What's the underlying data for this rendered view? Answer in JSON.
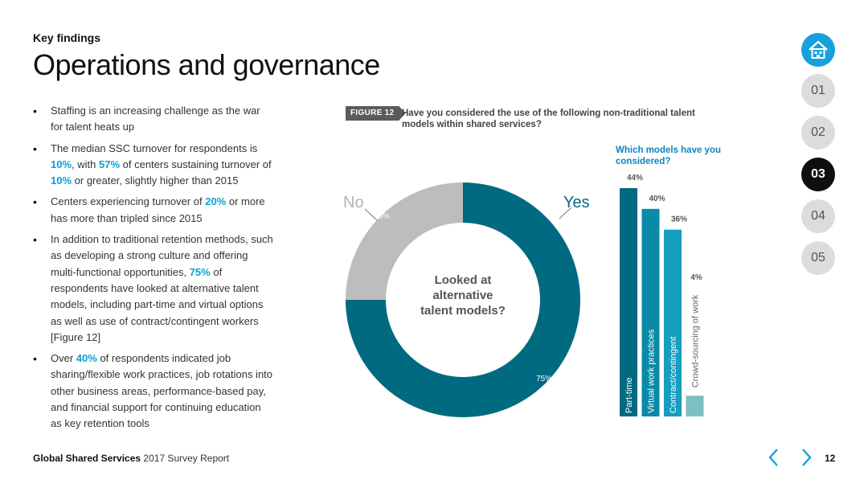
{
  "header": {
    "kicker": "Key findings",
    "title": "Operations and governance"
  },
  "bullets": [
    {
      "parts": [
        {
          "t": "Staffing is an increasing challenge as the war for talent heats up"
        }
      ]
    },
    {
      "parts": [
        {
          "t": "The median SSC turnover for respondents is "
        },
        {
          "t": "10%",
          "hl": true
        },
        {
          "t": ", with "
        },
        {
          "t": "57%",
          "hl": true
        },
        {
          "t": " of centers sustaining turnover of "
        },
        {
          "t": "10%",
          "hl": true
        },
        {
          "t": " or greater, slightly higher than 2015"
        }
      ]
    },
    {
      "parts": [
        {
          "t": "Centers experiencing turnover of "
        },
        {
          "t": "20%",
          "hl": true
        },
        {
          "t": " or more has more than tripled since 2015"
        }
      ]
    },
    {
      "parts": [
        {
          "t": "In addition to traditional retention methods, such as developing a strong culture and offering multi-functional opportunities, "
        },
        {
          "t": "75%",
          "hl": true
        },
        {
          "t": " of respondents have looked at alternative talent models, including part-time and virtual options as well as use of contract/contingent workers [Figure 12]"
        }
      ]
    },
    {
      "parts": [
        {
          "t": "Over "
        },
        {
          "t": "40%",
          "hl": true
        },
        {
          "t": " of respondents indicated job sharing/flexible work practices, job rotations into other business areas, performance-based pay, and financial support for continuing education as key retention tools"
        }
      ]
    }
  ],
  "figure": {
    "tag": "FIGURE 12",
    "question": "Have you considered the use of the following non-traditional talent models within shared services?",
    "bar_heading": "Which models have you considered?"
  },
  "chart_data": [
    {
      "type": "pie",
      "center_label": "Looked at alternative talent models?",
      "slices": [
        {
          "label": "Yes",
          "value": 75,
          "value_label": "75%",
          "color": "#006a80"
        },
        {
          "label": "No",
          "value": 25,
          "value_label": "25%",
          "color": "#bdbdbd"
        }
      ]
    },
    {
      "type": "bar",
      "orientation": "vertical",
      "categories": [
        "Part-time",
        "Virtual work practices",
        "Contract/contingent",
        "Crowd-sourcing of work"
      ],
      "values": [
        44,
        40,
        36,
        4
      ],
      "value_labels": [
        "44%",
        "40%",
        "36%",
        "4%"
      ],
      "colors": [
        "#006a80",
        "#0b8aa8",
        "#179dbd",
        "#7cc0c2"
      ],
      "ylim": [
        0,
        44
      ]
    }
  ],
  "nav": {
    "items": [
      "01",
      "02",
      "03",
      "04",
      "05"
    ],
    "active": "03"
  },
  "footer": {
    "brand": "Global Shared Services",
    "report": "2017 Survey Report",
    "page": "12"
  },
  "colors": {
    "accent": "#16a1dc",
    "highlight": "#0aa0d6",
    "prev_arrow": "#16a1dc",
    "next_arrow": "#16a1dc"
  }
}
